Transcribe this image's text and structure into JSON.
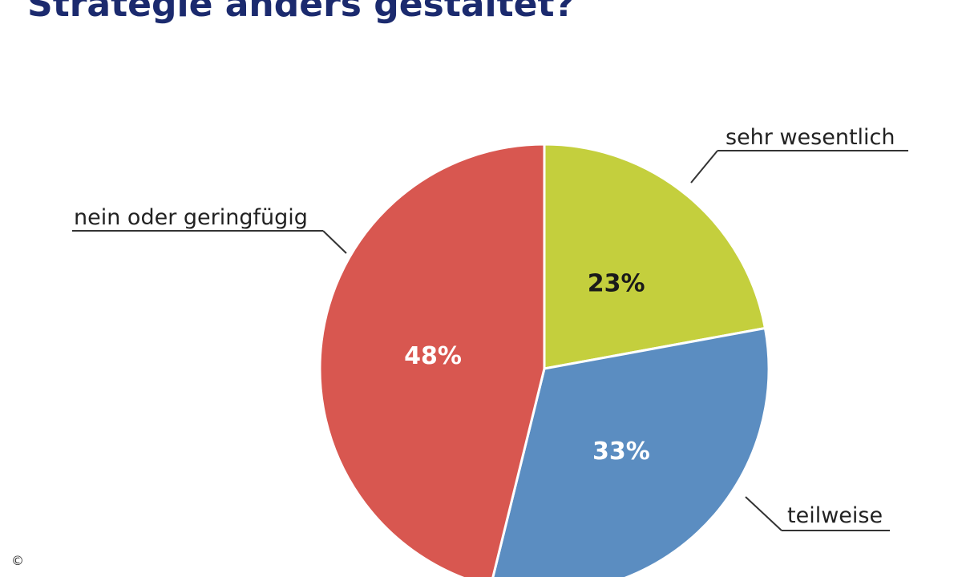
{
  "chart_data": {
    "type": "pie",
    "title": "Strategie anders gestaltet?",
    "categories": [
      "sehr wesentlich",
      "teilweise",
      "nein oder geringfügig"
    ],
    "values": [
      23,
      33,
      48
    ],
    "value_labels": [
      "23%",
      "33%",
      "48%"
    ],
    "colors": [
      "#c4cf3d",
      "#5b8dc1",
      "#d85750"
    ],
    "label_colors": [
      "#1a1a1a",
      "#ffffff",
      "#ffffff"
    ],
    "copyright": "©"
  }
}
